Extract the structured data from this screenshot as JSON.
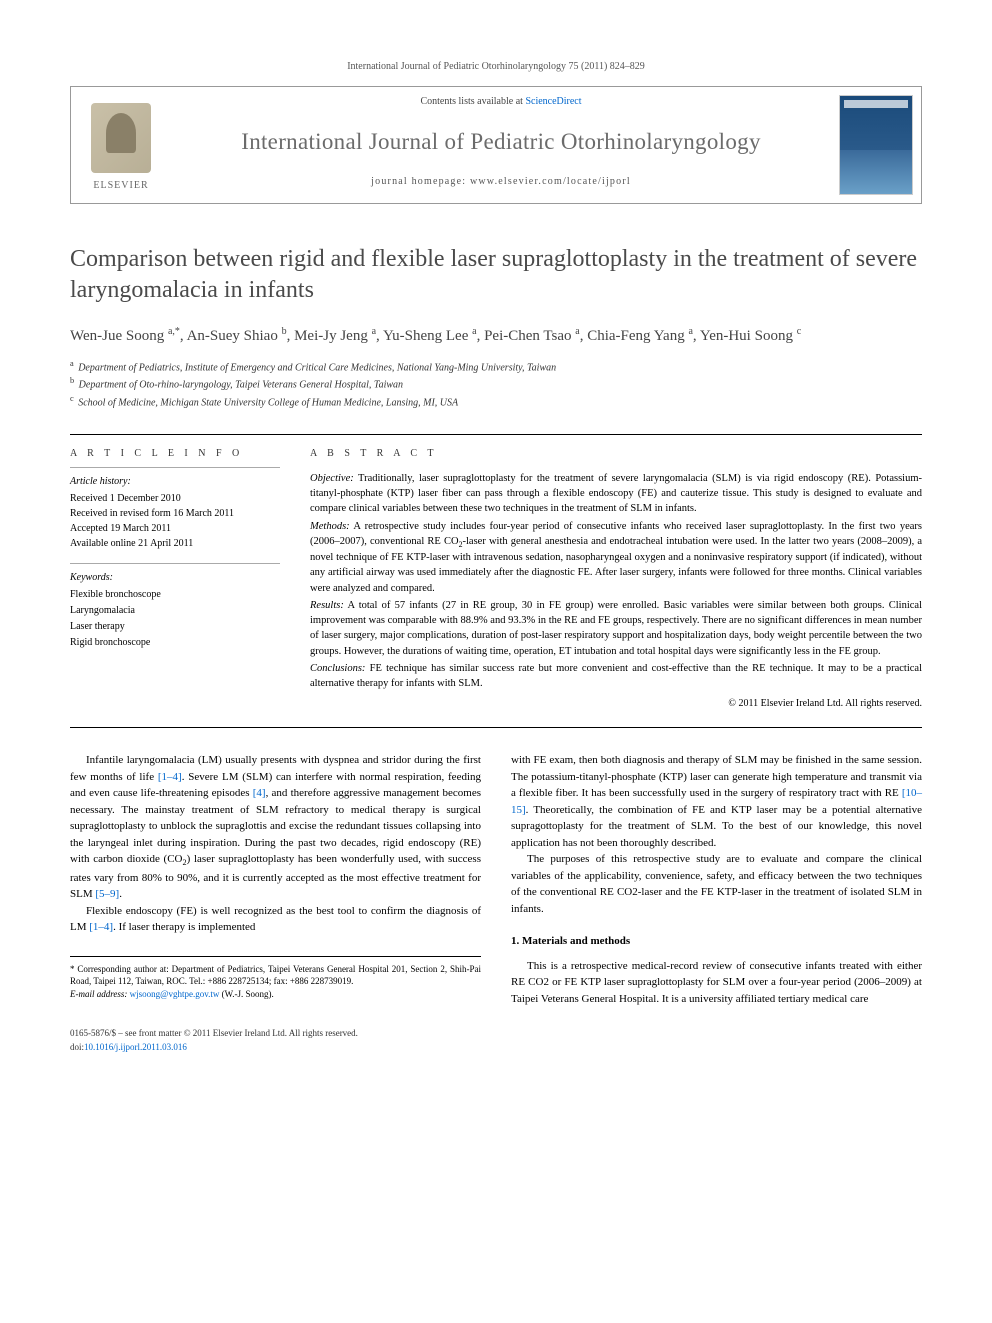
{
  "running_header": "International Journal of Pediatric Otorhinolaryngology 75 (2011) 824–829",
  "masthead": {
    "contents_prefix": "Contents lists available at ",
    "contents_link": "ScienceDirect",
    "journal_name": "International Journal of Pediatric Otorhinolaryngology",
    "homepage_prefix": "journal homepage: ",
    "homepage_url": "www.elsevier.com/locate/ijporl",
    "publisher_label": "ELSEVIER"
  },
  "article": {
    "title": "Comparison between rigid and flexible laser supraglottoplasty in the treatment of severe laryngomalacia in infants",
    "authors_html": "Wen-Jue Soong <sup>a,*</sup>, An-Suey Shiao <sup>b</sup>, Mei-Jy Jeng <sup>a</sup>, Yu-Sheng Lee <sup>a</sup>, Pei-Chen Tsao <sup>a</sup>, Chia-Feng Yang <sup>a</sup>, Yen-Hui Soong <sup>c</sup>",
    "affiliations": [
      {
        "sup": "a",
        "text": "Department of Pediatrics, Institute of Emergency and Critical Care Medicines, National Yang-Ming University, Taiwan"
      },
      {
        "sup": "b",
        "text": "Department of Oto-rhino-laryngology, Taipei Veterans General Hospital, Taiwan"
      },
      {
        "sup": "c",
        "text": "School of Medicine, Michigan State University College of Human Medicine, Lansing, MI, USA"
      }
    ]
  },
  "article_info": {
    "heading": "A R T I C L E   I N F O",
    "history_label": "Article history:",
    "history": [
      "Received 1 December 2010",
      "Received in revised form 16 March 2011",
      "Accepted 19 March 2011",
      "Available online 21 April 2011"
    ],
    "keywords_label": "Keywords:",
    "keywords": [
      "Flexible bronchoscope",
      "Laryngomalacia",
      "Laser therapy",
      "Rigid bronchoscope"
    ]
  },
  "abstract": {
    "heading": "A B S T R A C T",
    "sections": [
      {
        "lead": "Objective:",
        "text": " Traditionally, laser supraglottoplasty for the treatment of severe laryngomalacia (SLM) is via rigid endoscopy (RE). Potassium-titanyl-phosphate (KTP) laser fiber can pass through a flexible endoscopy (FE) and cauterize tissue. This study is designed to evaluate and compare clinical variables between these two techniques in the treatment of SLM in infants."
      },
      {
        "lead": "Methods:",
        "text": " A retrospective study includes four-year period of consecutive infants who received laser supraglottoplasty. In the first two years (2006–2007), conventional RE CO2-laser with general anesthesia and endotracheal intubation were used. In the latter two years (2008–2009), a novel technique of FE KTP-laser with intravenous sedation, nasopharyngeal oxygen and a noninvasive respiratory support (if indicated), without any artificial airway was used immediately after the diagnostic FE. After laser surgery, infants were followed for three months. Clinical variables were analyzed and compared."
      },
      {
        "lead": "Results:",
        "text": " A total of 57 infants (27 in RE group, 30 in FE group) were enrolled. Basic variables were similar between both groups. Clinical improvement was comparable with 88.9% and 93.3% in the RE and FE groups, respectively. There are no significant differences in mean number of laser surgery, major complications, duration of post-laser respiratory support and hospitalization days, body weight percentile between the two groups. However, the durations of waiting time, operation, ET intubation and total hospital days were significantly less in the FE group."
      },
      {
        "lead": "Conclusions:",
        "text": " FE technique has similar success rate but more convenient and cost-effective than the RE technique. It may to be a practical alternative therapy for infants with SLM."
      }
    ],
    "copyright": "© 2011 Elsevier Ireland Ltd. All rights reserved."
  },
  "body": {
    "p1a": "Infantile laryngomalacia (LM) usually presents with dyspnea and stridor during the first few months of life ",
    "p1_ref1": "[1–4]",
    "p1b": ". Severe LM (SLM) can interfere with normal respiration, feeding and even cause life-threatening episodes ",
    "p1_ref2": "[4]",
    "p1c": ", and therefore aggressive management becomes necessary. The mainstay treatment of SLM refractory to medical therapy is surgical supraglottoplasty to unblock the supraglottis and excise the redundant tissues collapsing into the laryngeal inlet during inspiration. During the past two decades, rigid endoscopy (RE) with carbon dioxide (CO",
    "p1d": ") laser supraglottoplasty has been wonderfully used, with success rates vary from 80% to 90%, and it is currently accepted as the most effective treatment for SLM ",
    "p1_ref3": "[5–9]",
    "p1e": ".",
    "p2a": "Flexible endoscopy (FE) is well recognized as the best tool to confirm the diagnosis of LM ",
    "p2_ref1": "[1–4]",
    "p2b": ". If laser therapy is implemented",
    "p3a": "with FE exam, then both diagnosis and therapy of SLM may be finished in the same session. The potassium-titanyl-phosphate (KTP) laser can generate high temperature and transmit via a flexible fiber. It has been successfully used in the surgery of respiratory tract with RE ",
    "p3_ref1": "[10–15]",
    "p3b": ". Theoretically, the combination of FE and KTP laser may be a potential alternative supragottoplasty for the treatment of SLM. To the best of our knowledge, this novel application has not been thoroughly described.",
    "p4": "The purposes of this retrospective study are to evaluate and compare the clinical variables of the applicability, convenience, safety, and efficacy between the two techniques of the conventional RE CO2-laser and the FE KTP-laser in the treatment of isolated SLM in infants.",
    "section1_head": "1. Materials and methods",
    "p5": "This is a retrospective medical-record review of consecutive infants treated with either RE CO2 or FE KTP laser supraglottoplasty for SLM over a four-year period (2006–2009) at Taipei Veterans General Hospital. It is a university affiliated tertiary medical care"
  },
  "footnote": {
    "corr": "* Corresponding author at: Department of Pediatrics, Taipei Veterans General Hospital 201, Section 2, Shih-Pai Road, Taipei 112, Taiwan, ROC. Tel.: +886 228725134; fax: +886 228739019.",
    "email_label": "E-mail address: ",
    "email": "wjsoong@vghtpe.gov.tw",
    "email_suffix": " (W.-J. Soong)."
  },
  "footer": {
    "issn": "0165-5876/$ – see front matter © 2011 Elsevier Ireland Ltd. All rights reserved.",
    "doi_label": "doi:",
    "doi": "10.1016/j.ijporl.2011.03.016"
  },
  "colors": {
    "link": "#0066cc",
    "title_gray": "#4a4a4a",
    "journal_gray": "#6b6b6b",
    "border": "#999999"
  },
  "typography": {
    "body_font": "Georgia, Times New Roman, serif",
    "title_fontsize_pt": 18,
    "journal_fontsize_pt": 17,
    "body_fontsize_pt": 8.5,
    "abstract_fontsize_pt": 8
  }
}
